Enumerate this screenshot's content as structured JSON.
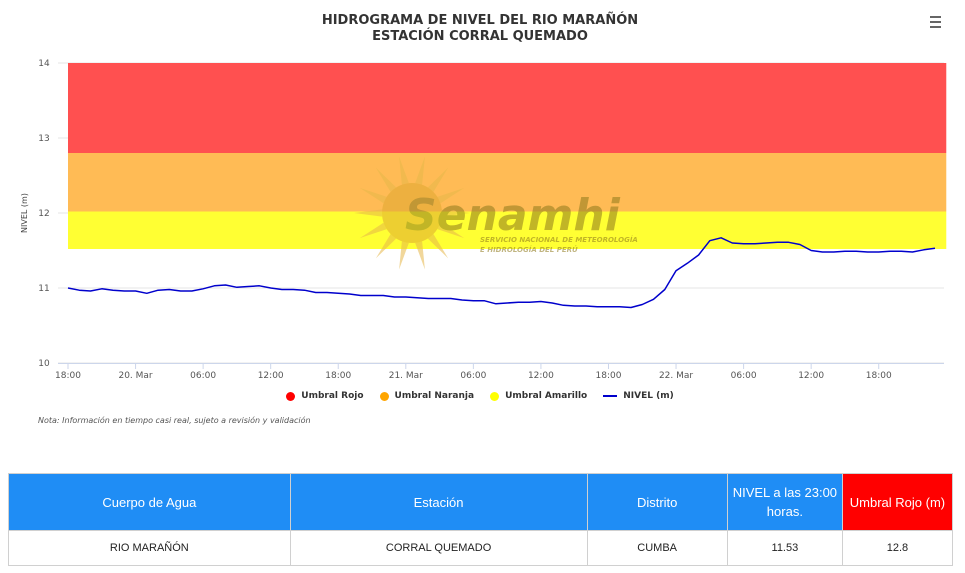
{
  "title": "HIDROGRAMA DE NIVEL DEL RIO MARAÑÓN",
  "subtitle": "ESTACIÓN CORRAL QUEMADO",
  "watermark": {
    "brand": "Senamhi",
    "line1": "SERVICIO NACIONAL DE METEOROLOGÍA",
    "line2": "E HIDROLOGÍA DEL PERÚ"
  },
  "note": "Nota: Información en tiempo casi real, sujeto a revisión y validación",
  "legend": [
    {
      "label": "Umbral Rojo",
      "color": "#ff0000",
      "kind": "dot"
    },
    {
      "label": "Umbral Naranja",
      "color": "#ffa500",
      "kind": "dot"
    },
    {
      "label": "Umbral Amarillo",
      "color": "#ffff00",
      "kind": "dot"
    },
    {
      "label": "NIVEL (m)",
      "color": "#0000cc",
      "kind": "line"
    }
  ],
  "chart_data": {
    "type": "line",
    "ylabel": "NIVEL (m)",
    "ylim": [
      10,
      14
    ],
    "yticks": [
      "10",
      "11",
      "12",
      "13",
      "14"
    ],
    "x_unit": "hours since 19 Mar 18:00",
    "xlim": [
      0,
      78
    ],
    "xticks": [
      {
        "x": 0,
        "label": "18:00"
      },
      {
        "x": 6,
        "label": "20. Mar"
      },
      {
        "x": 12,
        "label": "06:00"
      },
      {
        "x": 18,
        "label": "12:00"
      },
      {
        "x": 24,
        "label": "18:00"
      },
      {
        "x": 30,
        "label": "21. Mar"
      },
      {
        "x": 36,
        "label": "06:00"
      },
      {
        "x": 42,
        "label": "12:00"
      },
      {
        "x": 48,
        "label": "18:00"
      },
      {
        "x": 54,
        "label": "22. Mar"
      },
      {
        "x": 60,
        "label": "06:00"
      },
      {
        "x": 66,
        "label": "12:00"
      },
      {
        "x": 72,
        "label": "18:00"
      }
    ],
    "bands": [
      {
        "name": "Umbral Amarillo",
        "from": 11.52,
        "to": 12.02,
        "color": "#ffff33"
      },
      {
        "name": "Umbral Naranja",
        "from": 12.02,
        "to": 12.8,
        "color": "#ffbb55"
      },
      {
        "name": "Umbral Rojo",
        "from": 12.8,
        "to": 14,
        "color": "#ff5050"
      }
    ],
    "series": [
      {
        "name": "NIVEL (m)",
        "color": "#0000cc",
        "x": [
          0,
          1,
          2,
          3,
          4,
          5,
          6,
          7,
          8,
          9,
          10,
          11,
          12,
          13,
          14,
          15,
          16,
          17,
          18,
          19,
          20,
          21,
          22,
          23,
          24,
          25,
          26,
          27,
          28,
          29,
          30,
          31,
          32,
          33,
          34,
          35,
          36,
          37,
          38,
          39,
          40,
          41,
          42,
          43,
          44,
          45,
          46,
          47,
          48,
          49,
          50,
          51,
          52,
          53,
          54,
          55,
          56,
          57,
          58,
          59,
          60,
          61,
          62,
          63,
          64,
          65,
          66,
          67,
          68,
          69,
          70,
          71,
          72,
          73,
          74,
          75,
          76,
          77
        ],
        "values": [
          11.0,
          10.97,
          10.96,
          10.99,
          10.97,
          10.96,
          10.96,
          10.93,
          10.97,
          10.98,
          10.96,
          10.96,
          10.99,
          11.03,
          11.04,
          11.01,
          11.02,
          11.03,
          11.0,
          10.98,
          10.98,
          10.97,
          10.94,
          10.94,
          10.93,
          10.92,
          10.9,
          10.9,
          10.9,
          10.88,
          10.88,
          10.87,
          10.86,
          10.86,
          10.86,
          10.84,
          10.83,
          10.83,
          10.79,
          10.8,
          10.81,
          10.81,
          10.82,
          10.8,
          10.77,
          10.76,
          10.76,
          10.75,
          10.75,
          10.75,
          10.74,
          10.78,
          10.85,
          10.98,
          11.23,
          11.33,
          11.44,
          11.63,
          11.67,
          11.6,
          11.59,
          11.59,
          11.6,
          11.61,
          11.61,
          11.58,
          11.5,
          11.48,
          11.48,
          11.49,
          11.49,
          11.48,
          11.48,
          11.49,
          11.49,
          11.48,
          11.51,
          11.53
        ]
      }
    ]
  },
  "table": {
    "headers": [
      "Cuerpo de Agua",
      "Estación",
      "Distrito",
      "NIVEL a las 23:00 horas.",
      "Umbral Rojo (m)"
    ],
    "row": [
      "RIO MARAÑÓN",
      "CORRAL QUEMADO",
      "CUMBA",
      "11.53",
      "12.8"
    ]
  }
}
